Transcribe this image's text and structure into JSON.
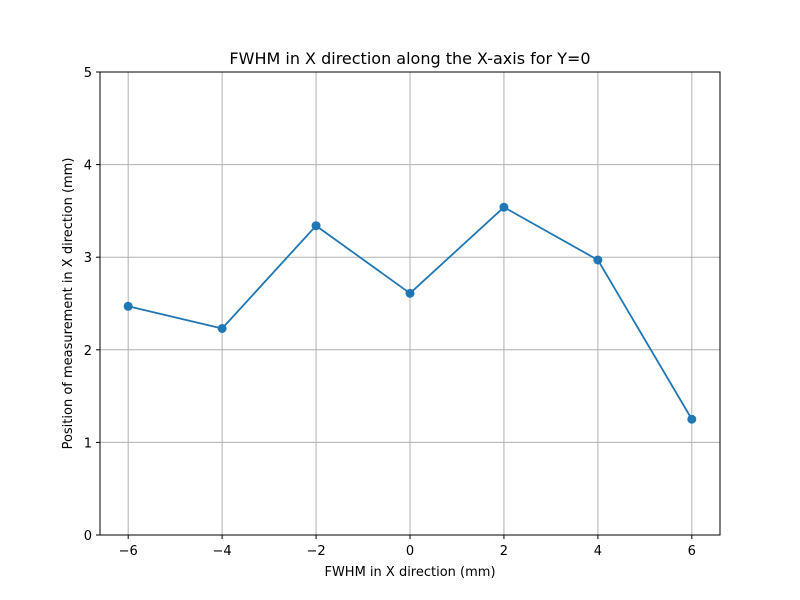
{
  "chart_data": {
    "type": "line",
    "title": "FWHM in X direction along the X-axis for Y=0",
    "xlabel": "FWHM in X direction (mm)",
    "ylabel": "Position of measurement in X direction (mm)",
    "x": [
      -6,
      -4,
      -2,
      0,
      2,
      4,
      6
    ],
    "series": [
      {
        "name": "FWHM",
        "values": [
          2.47,
          2.23,
          3.34,
          2.61,
          3.54,
          2.97,
          1.25
        ],
        "color": "#1f77b4",
        "marker": "circle"
      }
    ],
    "xlim": [
      -6.6,
      6.6
    ],
    "ylim": [
      0,
      5
    ],
    "xticks": [
      -6,
      -4,
      -2,
      0,
      2,
      4,
      6
    ],
    "xtick_labels": [
      "−6",
      "−4",
      "−2",
      "0",
      "2",
      "4",
      "6"
    ],
    "yticks": [
      0,
      1,
      2,
      3,
      4,
      5
    ],
    "ytick_labels": [
      "0",
      "1",
      "2",
      "3",
      "4",
      "5"
    ],
    "grid": true,
    "colors": {
      "grid": "#b0b0b0",
      "axis": "#000000",
      "line": "#1f77b4"
    }
  }
}
